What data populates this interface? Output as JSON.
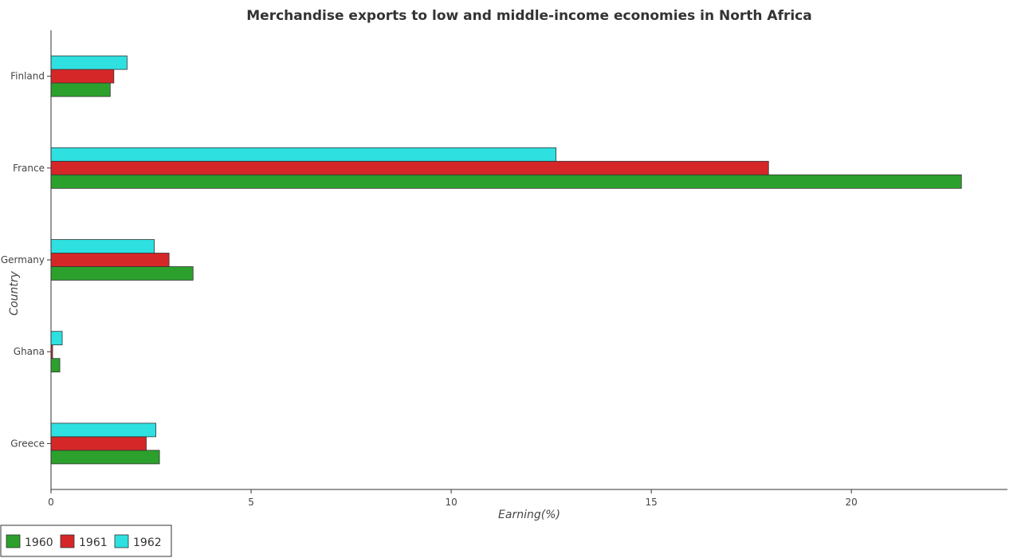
{
  "chart_data": {
    "type": "bar",
    "orientation": "horizontal",
    "title": "Merchandise exports to low and middle-income economies in North Africa",
    "xlabel": "Earning(%)",
    "ylabel": "Country",
    "categories": [
      "Finland",
      "France",
      "Germany",
      "Ghana",
      "Greece"
    ],
    "xlim": [
      0,
      23.9
    ],
    "xticks": [
      0,
      5,
      10,
      15,
      20
    ],
    "xtick_labels": [
      "0",
      "5",
      "10",
      "15",
      "20"
    ],
    "series": [
      {
        "name": "1960",
        "color": "#2ca02c",
        "values": [
          1.48,
          22.75,
          3.55,
          0.22,
          2.71
        ]
      },
      {
        "name": "1961",
        "color": "#d62728",
        "values": [
          1.57,
          17.93,
          2.95,
          0.04,
          2.38
        ]
      },
      {
        "name": "1962",
        "color": "#2ee0e0",
        "values": [
          1.9,
          12.62,
          2.58,
          0.28,
          2.62
        ]
      }
    ],
    "grid": false,
    "legend_position": "bottom-left"
  }
}
